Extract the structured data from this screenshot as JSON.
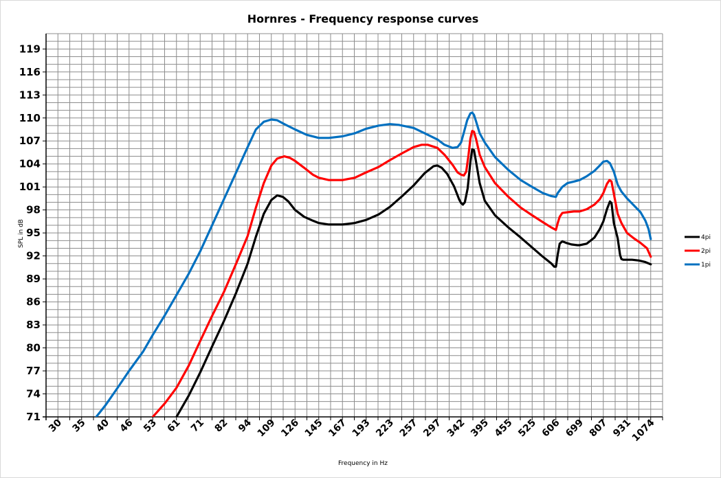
{
  "chart_data": {
    "type": "line",
    "title": "Hornres - Frequency response curves",
    "xlabel": "Frequency in Hz",
    "ylabel": "SPL in dB",
    "x_ticks": [
      "30",
      "35",
      "40",
      "46",
      "53",
      "61",
      "71",
      "82",
      "94",
      "109",
      "126",
      "145",
      "167",
      "193",
      "223",
      "257",
      "297",
      "342",
      "395",
      "455",
      "525",
      "606",
      "699",
      "807",
      "931",
      "1074"
    ],
    "y_ticks": [
      "71",
      "74",
      "77",
      "80",
      "83",
      "86",
      "89",
      "92",
      "95",
      "98",
      "101",
      "104",
      "107",
      "110",
      "113",
      "116",
      "119"
    ],
    "ylim": [
      71,
      121
    ],
    "grid": true,
    "legend_position": "right",
    "series": [
      {
        "name": "4pi",
        "color": "#000000",
        "points": [
          [
            61,
            71.0
          ],
          [
            66,
            73.8
          ],
          [
            71,
            76.8
          ],
          [
            76,
            80.0
          ],
          [
            82,
            83.5
          ],
          [
            88,
            87.2
          ],
          [
            94,
            91.0
          ],
          [
            99,
            94.5
          ],
          [
            104,
            97.5
          ],
          [
            109,
            99.3
          ],
          [
            113,
            99.9
          ],
          [
            117,
            99.7
          ],
          [
            121,
            99.1
          ],
          [
            126,
            98.0
          ],
          [
            133,
            97.1
          ],
          [
            140,
            96.6
          ],
          [
            145,
            96.3
          ],
          [
            154,
            96.1
          ],
          [
            167,
            96.1
          ],
          [
            180,
            96.3
          ],
          [
            193,
            96.7
          ],
          [
            208,
            97.4
          ],
          [
            223,
            98.4
          ],
          [
            240,
            99.8
          ],
          [
            257,
            101.2
          ],
          [
            275,
            102.8
          ],
          [
            290,
            103.7
          ],
          [
            297,
            103.8
          ],
          [
            305,
            103.5
          ],
          [
            315,
            102.7
          ],
          [
            328,
            101.1
          ],
          [
            338,
            99.4
          ],
          [
            342,
            98.9
          ],
          [
            346,
            98.7
          ],
          [
            350,
            99.0
          ],
          [
            356,
            100.8
          ],
          [
            362,
            104.3
          ],
          [
            366,
            105.9
          ],
          [
            370,
            105.8
          ],
          [
            375,
            104.2
          ],
          [
            383,
            101.5
          ],
          [
            395,
            99.2
          ],
          [
            420,
            97.3
          ],
          [
            455,
            95.7
          ],
          [
            490,
            94.4
          ],
          [
            525,
            93.1
          ],
          [
            560,
            91.9
          ],
          [
            590,
            91.0
          ],
          [
            600,
            90.6
          ],
          [
            606,
            90.6
          ],
          [
            613,
            92.2
          ],
          [
            620,
            93.6
          ],
          [
            630,
            93.9
          ],
          [
            645,
            93.7
          ],
          [
            665,
            93.5
          ],
          [
            690,
            93.4
          ],
          [
            699,
            93.4
          ],
          [
            730,
            93.6
          ],
          [
            765,
            94.4
          ],
          [
            790,
            95.5
          ],
          [
            807,
            96.5
          ],
          [
            825,
            98.1
          ],
          [
            840,
            99.1
          ],
          [
            848,
            98.9
          ],
          [
            860,
            96.3
          ],
          [
            880,
            94.3
          ],
          [
            893,
            92.1
          ],
          [
            900,
            91.6
          ],
          [
            910,
            91.5
          ],
          [
            931,
            91.5
          ],
          [
            960,
            91.5
          ],
          [
            1000,
            91.4
          ],
          [
            1040,
            91.2
          ],
          [
            1074,
            90.9
          ]
        ]
      },
      {
        "name": "2pi",
        "color": "#ff0000",
        "points": [
          [
            53,
            71.0
          ],
          [
            57,
            72.8
          ],
          [
            61,
            74.8
          ],
          [
            66,
            77.7
          ],
          [
            71,
            80.9
          ],
          [
            76,
            84.0
          ],
          [
            82,
            87.3
          ],
          [
            88,
            91.0
          ],
          [
            94,
            94.6
          ],
          [
            99,
            98.3
          ],
          [
            104,
            101.5
          ],
          [
            109,
            103.8
          ],
          [
            113,
            104.7
          ],
          [
            118,
            105.0
          ],
          [
            122,
            104.8
          ],
          [
            126,
            104.4
          ],
          [
            133,
            103.5
          ],
          [
            140,
            102.6
          ],
          [
            145,
            102.2
          ],
          [
            154,
            101.9
          ],
          [
            167,
            101.9
          ],
          [
            180,
            102.2
          ],
          [
            193,
            102.9
          ],
          [
            208,
            103.6
          ],
          [
            223,
            104.5
          ],
          [
            240,
            105.4
          ],
          [
            257,
            106.2
          ],
          [
            270,
            106.5
          ],
          [
            280,
            106.5
          ],
          [
            297,
            106.1
          ],
          [
            310,
            105.2
          ],
          [
            325,
            103.9
          ],
          [
            335,
            102.9
          ],
          [
            342,
            102.6
          ],
          [
            348,
            102.5
          ],
          [
            353,
            103.0
          ],
          [
            358,
            105.2
          ],
          [
            362,
            107.3
          ],
          [
            366,
            108.3
          ],
          [
            370,
            108.2
          ],
          [
            375,
            107.2
          ],
          [
            383,
            105.2
          ],
          [
            395,
            103.6
          ],
          [
            420,
            101.5
          ],
          [
            455,
            99.7
          ],
          [
            490,
            98.3
          ],
          [
            525,
            97.3
          ],
          [
            560,
            96.4
          ],
          [
            590,
            95.7
          ],
          [
            606,
            95.4
          ],
          [
            613,
            96.3
          ],
          [
            620,
            97.1
          ],
          [
            630,
            97.6
          ],
          [
            650,
            97.7
          ],
          [
            675,
            97.8
          ],
          [
            699,
            97.8
          ],
          [
            730,
            98.1
          ],
          [
            765,
            98.7
          ],
          [
            790,
            99.4
          ],
          [
            807,
            100.2
          ],
          [
            825,
            101.4
          ],
          [
            838,
            101.9
          ],
          [
            848,
            101.7
          ],
          [
            860,
            100.1
          ],
          [
            880,
            97.5
          ],
          [
            900,
            96.3
          ],
          [
            931,
            95.0
          ],
          [
            970,
            94.3
          ],
          [
            1010,
            93.7
          ],
          [
            1050,
            93.0
          ],
          [
            1074,
            91.9
          ]
        ]
      },
      {
        "name": "1pi",
        "color": "#0070c0",
        "points": [
          [
            38,
            71.0
          ],
          [
            40,
            72.5
          ],
          [
            43,
            74.8
          ],
          [
            46,
            77.0
          ],
          [
            50,
            79.5
          ],
          [
            53,
            81.7
          ],
          [
            57,
            84.3
          ],
          [
            61,
            86.9
          ],
          [
            66,
            89.7
          ],
          [
            71,
            92.6
          ],
          [
            76,
            95.8
          ],
          [
            82,
            99.4
          ],
          [
            88,
            102.9
          ],
          [
            94,
            106.2
          ],
          [
            99,
            108.5
          ],
          [
            104,
            109.5
          ],
          [
            109,
            109.8
          ],
          [
            113,
            109.7
          ],
          [
            118,
            109.2
          ],
          [
            126,
            108.5
          ],
          [
            135,
            107.8
          ],
          [
            145,
            107.4
          ],
          [
            154,
            107.4
          ],
          [
            167,
            107.6
          ],
          [
            180,
            108.0
          ],
          [
            193,
            108.6
          ],
          [
            208,
            109.0
          ],
          [
            223,
            109.2
          ],
          [
            235,
            109.1
          ],
          [
            257,
            108.7
          ],
          [
            275,
            108.0
          ],
          [
            297,
            107.2
          ],
          [
            310,
            106.5
          ],
          [
            325,
            106.1
          ],
          [
            335,
            106.2
          ],
          [
            342,
            106.8
          ],
          [
            348,
            108.1
          ],
          [
            355,
            109.7
          ],
          [
            362,
            110.6
          ],
          [
            366,
            110.7
          ],
          [
            370,
            110.4
          ],
          [
            375,
            109.5
          ],
          [
            383,
            108.0
          ],
          [
            395,
            106.8
          ],
          [
            420,
            104.9
          ],
          [
            455,
            103.2
          ],
          [
            490,
            101.9
          ],
          [
            525,
            101.0
          ],
          [
            560,
            100.2
          ],
          [
            590,
            99.8
          ],
          [
            606,
            99.7
          ],
          [
            613,
            100.2
          ],
          [
            630,
            101.0
          ],
          [
            650,
            101.5
          ],
          [
            675,
            101.7
          ],
          [
            699,
            101.9
          ],
          [
            730,
            102.4
          ],
          [
            765,
            103.1
          ],
          [
            790,
            103.8
          ],
          [
            807,
            104.3
          ],
          [
            825,
            104.4
          ],
          [
            840,
            104.1
          ],
          [
            860,
            103.0
          ],
          [
            880,
            101.3
          ],
          [
            900,
            100.4
          ],
          [
            931,
            99.5
          ],
          [
            970,
            98.6
          ],
          [
            1010,
            97.7
          ],
          [
            1040,
            96.6
          ],
          [
            1060,
            95.5
          ],
          [
            1074,
            94.2
          ]
        ]
      }
    ]
  }
}
